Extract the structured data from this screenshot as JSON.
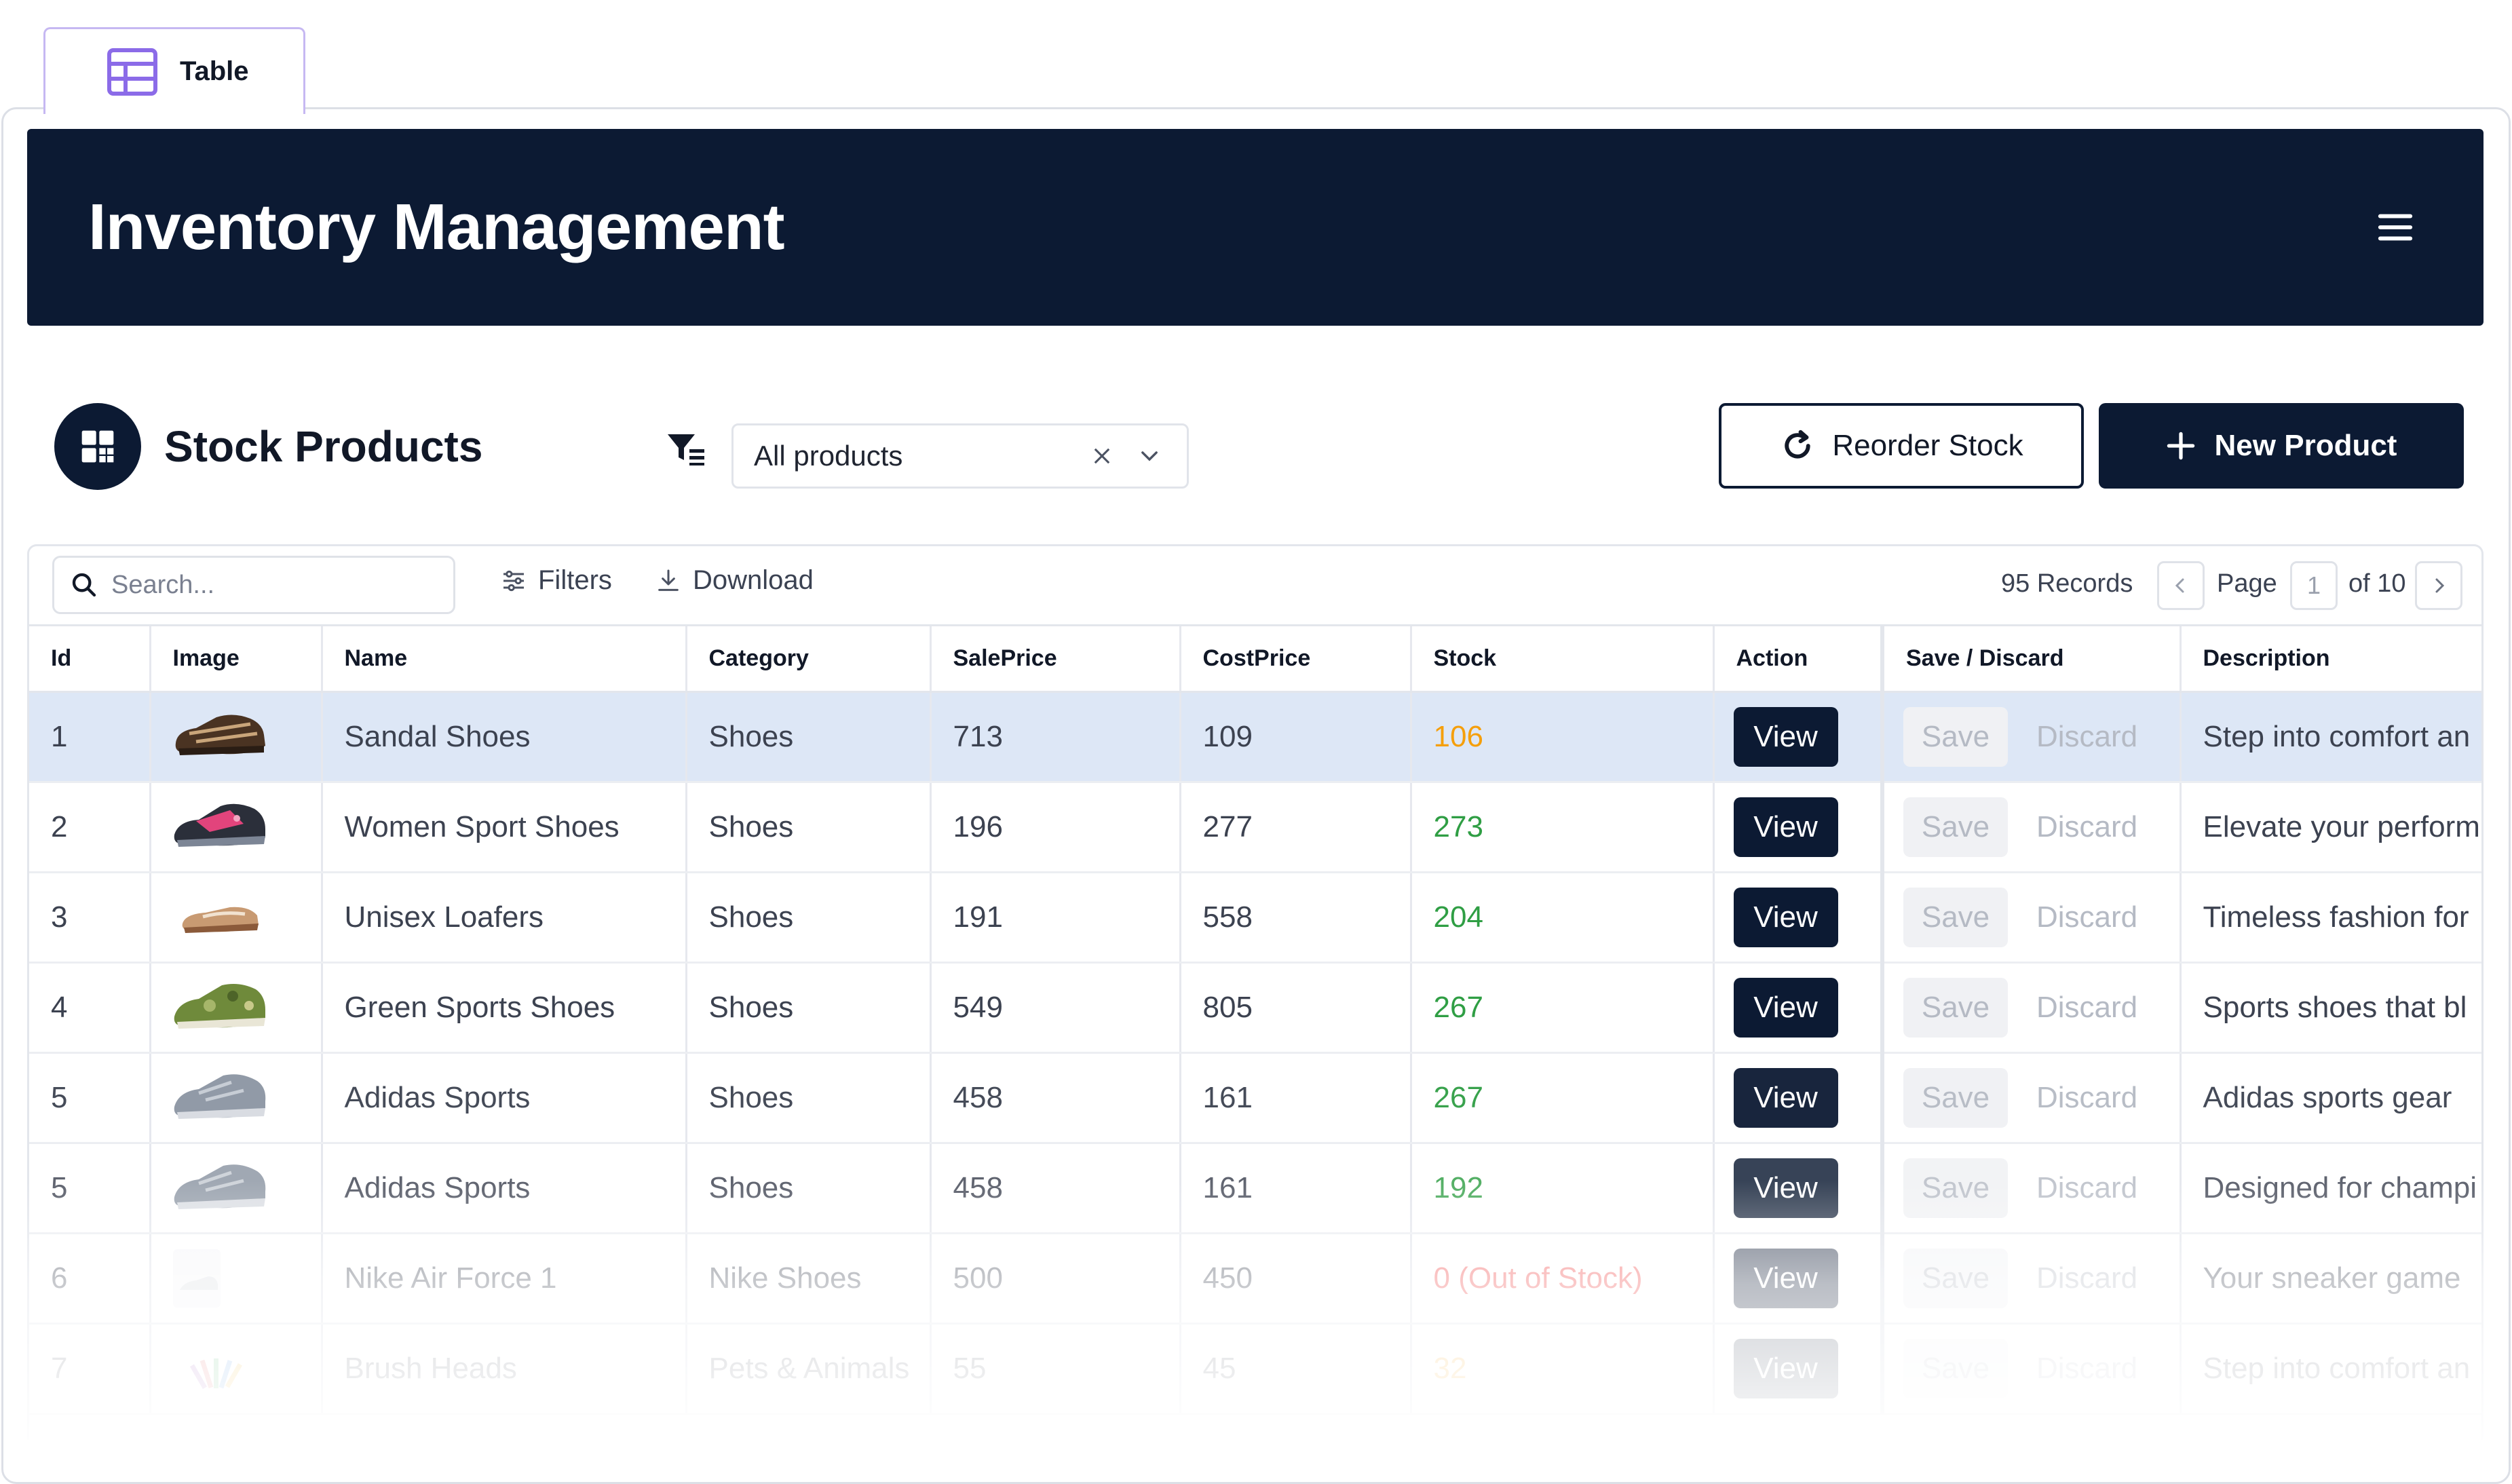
{
  "tab": {
    "label": "Table"
  },
  "header": {
    "title": "Inventory Management"
  },
  "toolbar": {
    "section_title": "Stock Products",
    "select_value": "All products",
    "reorder_label": "Reorder Stock",
    "new_product_label": "New Product"
  },
  "table_bar": {
    "search_placeholder": "Search...",
    "filters_label": "Filters",
    "download_label": "Download",
    "records": "95 Records",
    "page_label": "Page",
    "page_value": "1",
    "of_label": "of 10"
  },
  "columns": [
    "Id",
    "Image",
    "Name",
    "Category",
    "SalePrice",
    "CostPrice",
    "Stock",
    "Action",
    "Save / Discard",
    "Description"
  ],
  "action_labels": {
    "view": "View",
    "save": "Save",
    "discard": "Discard"
  },
  "rows": [
    {
      "id": "1",
      "image": "sandal-shoe-photo",
      "name": "Sandal Shoes",
      "category": "Shoes",
      "sale": "713",
      "cost": "109",
      "stock": "106",
      "stock_status": "low",
      "desc": "Step into comfort an"
    },
    {
      "id": "2",
      "image": "pink-sport-shoe-photo",
      "name": "Women Sport Shoes",
      "category": "Shoes",
      "sale": "196",
      "cost": "277",
      "stock": "273",
      "stock_status": "ok",
      "desc": "Elevate your perform"
    },
    {
      "id": "3",
      "image": "loafer-photo",
      "name": "Unisex Loafers",
      "category": "Shoes",
      "sale": "191",
      "cost": "558",
      "stock": "204",
      "stock_status": "ok",
      "desc": "Timeless fashion for"
    },
    {
      "id": "4",
      "image": "green-camo-shoe-photo",
      "name": "Green Sports Shoes",
      "category": "Shoes",
      "sale": "549",
      "cost": "805",
      "stock": "267",
      "stock_status": "ok",
      "desc": "Sports shoes that bl"
    },
    {
      "id": "5",
      "image": "grey-sneaker-photo",
      "name": "Adidas Sports",
      "category": "Shoes",
      "sale": "458",
      "cost": "161",
      "stock": "267",
      "stock_status": "ok",
      "desc": "Adidas sports gear"
    },
    {
      "id": "5",
      "image": "grey-sneaker-photo",
      "name": "Adidas Sports",
      "category": "Shoes",
      "sale": "458",
      "cost": "161",
      "stock": "192",
      "stock_status": "ok",
      "desc": "Designed for champi"
    },
    {
      "id": "6",
      "image": "white-sneaker-photo",
      "name": "Nike Air Force 1",
      "category": "Nike Shoes",
      "sale": "500",
      "cost": "450",
      "stock": "0 (Out of Stock)",
      "stock_status": "out",
      "desc": "Your sneaker game"
    },
    {
      "id": "7",
      "image": "brush-heads-photo",
      "name": "Brush Heads",
      "category": "Pets & Animals",
      "sale": "55",
      "cost": "45",
      "stock": "32",
      "stock_status": "low",
      "desc": "Step into comfort an"
    }
  ],
  "colors": {
    "navy": "#0c1a33",
    "stock_low": "#f59f0b",
    "stock_ok": "#2f9e44",
    "stock_out": "#ef4444",
    "selected_row": "#dde7f6",
    "tab_accent": "#8b6be8"
  }
}
